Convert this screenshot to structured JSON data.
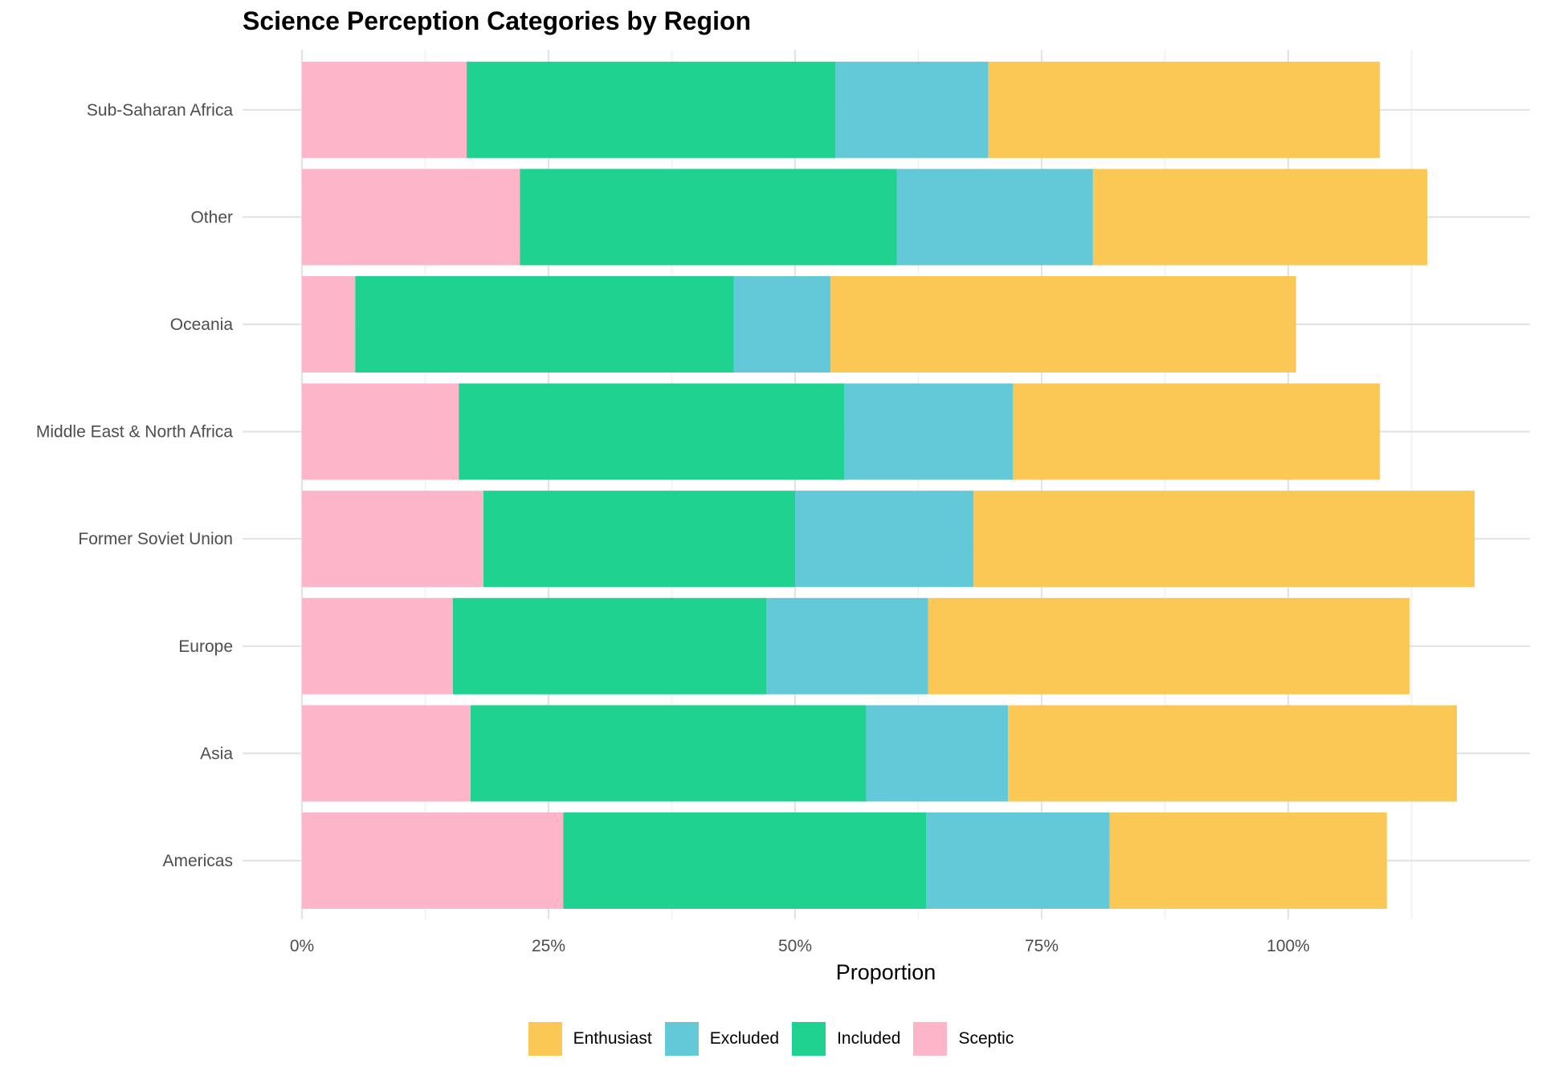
{
  "chart_data": {
    "type": "bar",
    "orientation": "horizontal",
    "stacked": true,
    "title": "Science Perception Categories by Region",
    "xlabel": "Proportion",
    "ylabel": "",
    "xlim": [
      0,
      1.23
    ],
    "x_ticks": [
      0,
      0.25,
      0.5,
      0.75,
      1.0
    ],
    "x_tick_labels": [
      "0%",
      "25%",
      "50%",
      "75%",
      "100%"
    ],
    "categories": [
      "Americas",
      "Asia",
      "Europe",
      "Former Soviet Union",
      "Middle East & North Africa",
      "Oceania",
      "Other",
      "Sub-Saharan Africa"
    ],
    "series": [
      {
        "name": "Sceptic",
        "color": "#FDB5C9",
        "values": [
          0.265,
          0.171,
          0.153,
          0.184,
          0.159,
          0.054,
          0.221,
          0.167
        ]
      },
      {
        "name": "Included",
        "color": "#1FD28F",
        "values": [
          0.368,
          0.401,
          0.318,
          0.316,
          0.391,
          0.384,
          0.382,
          0.374
        ]
      },
      {
        "name": "Excluded",
        "color": "#63C8D7",
        "values": [
          0.186,
          0.144,
          0.164,
          0.181,
          0.171,
          0.098,
          0.199,
          0.155
        ]
      },
      {
        "name": "Enthusiast",
        "color": "#FCC855",
        "values": [
          0.281,
          0.455,
          0.488,
          0.508,
          0.372,
          0.472,
          0.339,
          0.397
        ]
      }
    ],
    "legend": {
      "position": "bottom",
      "order": [
        "Enthusiast",
        "Excluded",
        "Included",
        "Sceptic"
      ]
    },
    "grid": true
  }
}
